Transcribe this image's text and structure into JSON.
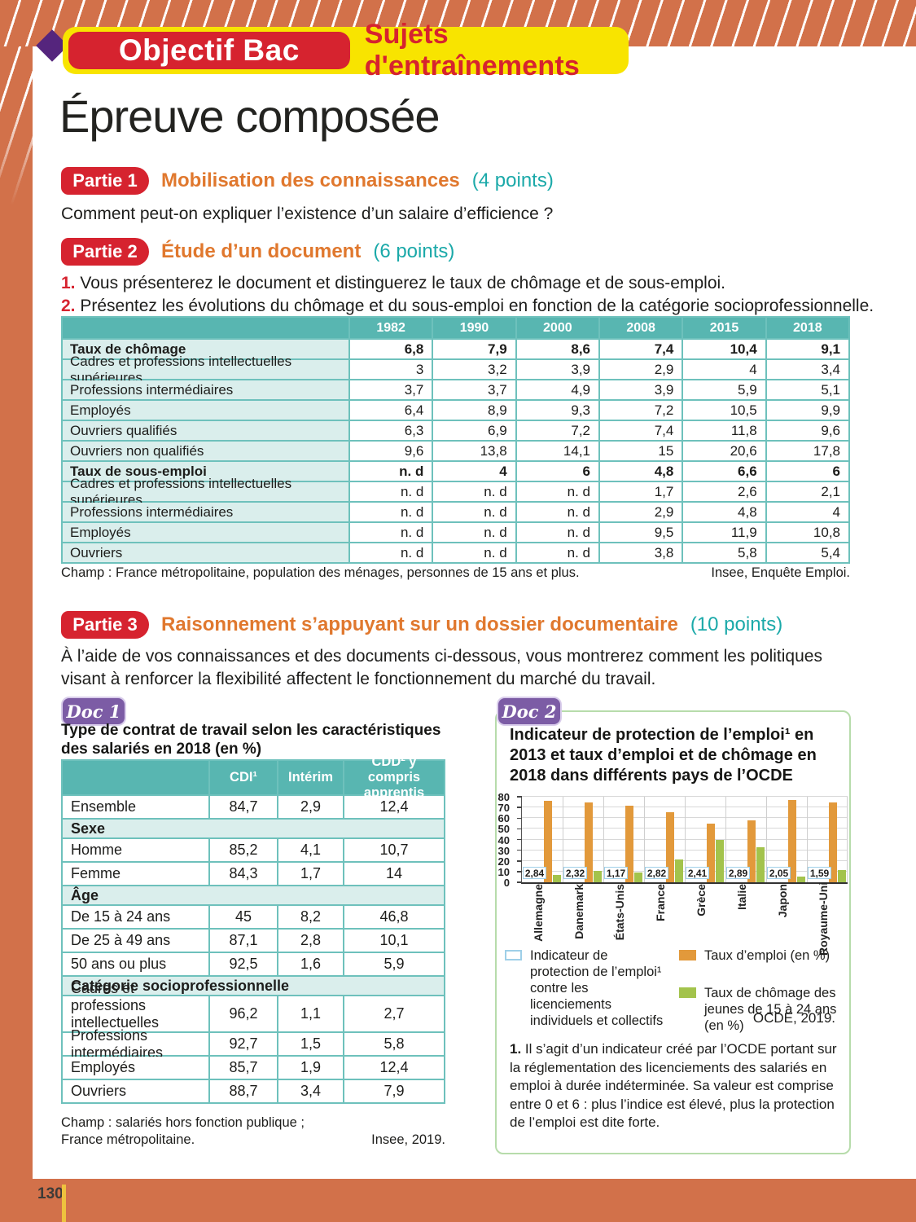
{
  "page": {
    "number": "130"
  },
  "header": {
    "badge": "Objectif Bac",
    "banner": "Sujets d'entraînements",
    "title": "Épreuve composée"
  },
  "partie1": {
    "badge": "Partie 1",
    "title": "Mobilisation des connaissances",
    "points": "(4 points)",
    "question": "Comment peut-on expliquer l’existence d’un salaire d’efficience ?"
  },
  "partie2": {
    "badge": "Partie 2",
    "title": "Étude d’un document",
    "points": "(6 points)",
    "questions": [
      {
        "num": "1.",
        "text": "Vous présenterez le document et distinguerez le taux de chômage et de sous-emploi."
      },
      {
        "num": "2.",
        "text": "Présentez les évolutions du chômage et du sous-emploi en fonction de la catégorie socioprofessionnelle."
      }
    ],
    "table": {
      "col_headers": [
        "1982",
        "1990",
        "2000",
        "2008",
        "2015",
        "2018"
      ],
      "rows": [
        {
          "label": "Taux de chômage",
          "bold": true,
          "values": [
            "6,8",
            "7,9",
            "8,6",
            "7,4",
            "10,4",
            "9,1"
          ]
        },
        {
          "label": "Cadres et professions intellectuelles supérieures",
          "bold": false,
          "values": [
            "3",
            "3,2",
            "3,9",
            "2,9",
            "4",
            "3,4"
          ]
        },
        {
          "label": "Professions intermédiaires",
          "bold": false,
          "values": [
            "3,7",
            "3,7",
            "4,9",
            "3,9",
            "5,9",
            "5,1"
          ]
        },
        {
          "label": "Employés",
          "bold": false,
          "values": [
            "6,4",
            "8,9",
            "9,3",
            "7,2",
            "10,5",
            "9,9"
          ]
        },
        {
          "label": "Ouvriers qualifiés",
          "bold": false,
          "values": [
            "6,3",
            "6,9",
            "7,2",
            "7,4",
            "11,8",
            "9,6"
          ]
        },
        {
          "label": "Ouvriers non qualifiés",
          "bold": false,
          "values": [
            "9,6",
            "13,8",
            "14,1",
            "15",
            "20,6",
            "17,8"
          ]
        },
        {
          "label": "Taux de sous-emploi",
          "bold": true,
          "values": [
            "n. d",
            "4",
            "6",
            "4,8",
            "6,6",
            "6"
          ]
        },
        {
          "label": "Cadres et professions intellectuelles supérieures",
          "bold": false,
          "values": [
            "n. d",
            "n. d",
            "n. d",
            "1,7",
            "2,6",
            "2,1"
          ]
        },
        {
          "label": "Professions intermédiaires",
          "bold": false,
          "values": [
            "n. d",
            "n. d",
            "n. d",
            "2,9",
            "4,8",
            "4"
          ]
        },
        {
          "label": "Employés",
          "bold": false,
          "values": [
            "n. d",
            "n. d",
            "n. d",
            "9,5",
            "11,9",
            "10,8"
          ]
        },
        {
          "label": "Ouvriers",
          "bold": false,
          "values": [
            "n. d",
            "n. d",
            "n. d",
            "3,8",
            "5,8",
            "5,4"
          ]
        }
      ],
      "champ": "Champ : France métropolitaine, population des ménages, personnes de 15 ans et plus.",
      "source": "Insee, Enquête Emploi."
    }
  },
  "partie3": {
    "badge": "Partie 3",
    "title": "Raisonnement s’appuyant sur un dossier documentaire",
    "points": "(10 points)",
    "intro": "À l’aide de vos connaissances et des documents ci-dessous, vous montrerez comment les politiques visant à renforcer la flexibilité affectent le fonctionnement du marché du travail."
  },
  "doc1": {
    "badge": "Doc 1",
    "title": "Type de contrat de travail selon les caractéristiques des salariés en 2018 (en %)",
    "table": {
      "col_headers": [
        "",
        "CDI¹",
        "Intérim",
        "CDD² y compris apprentis"
      ],
      "rows": [
        {
          "type": "data",
          "label": "Ensemble",
          "values": [
            "84,7",
            "2,9",
            "12,4"
          ]
        },
        {
          "type": "section",
          "label": "Sexe"
        },
        {
          "type": "data",
          "label": "Homme",
          "values": [
            "85,2",
            "4,1",
            "10,7"
          ]
        },
        {
          "type": "data",
          "label": "Femme",
          "values": [
            "84,3",
            "1,7",
            "14"
          ]
        },
        {
          "type": "section",
          "label": "Âge"
        },
        {
          "type": "data",
          "label": "De 15 à 24 ans",
          "values": [
            "45",
            "8,2",
            "46,8"
          ]
        },
        {
          "type": "data",
          "label": "De 25 à 49 ans",
          "values": [
            "87,1",
            "2,8",
            "10,1"
          ]
        },
        {
          "type": "data",
          "label": "50 ans ou plus",
          "values": [
            "92,5",
            "1,6",
            "5,9"
          ]
        },
        {
          "type": "section",
          "label": "Catégorie socioprofessionnelle"
        },
        {
          "type": "data",
          "label": "Cadres et professions intellectuelles supérieures",
          "values": [
            "96,2",
            "1,1",
            "2,7"
          ]
        },
        {
          "type": "data",
          "label": "Professions intermédiaires",
          "values": [
            "92,7",
            "1,5",
            "5,8"
          ]
        },
        {
          "type": "data",
          "label": "Employés",
          "values": [
            "85,7",
            "1,9",
            "12,4"
          ]
        },
        {
          "type": "data",
          "label": "Ouvriers",
          "values": [
            "88,7",
            "3,4",
            "7,9"
          ]
        }
      ],
      "champ_line1": "Champ : salariés hors fonction publique ;",
      "champ_line2": "France métropolitaine.",
      "source": "Insee, 2019."
    }
  },
  "doc2": {
    "badge": "Doc 2",
    "title": "Indicateur de protection de l’emploi¹ en 2013 et taux d’emploi et de chômage en 2018 dans différents pays de l’OCDE",
    "legend": [
      {
        "swatch": "indicator",
        "text": "Indicateur de protection de l’emploi¹ contre les licenciements individuels et collectifs"
      },
      {
        "swatch": "emploi",
        "text": "Taux d’emploi (en %)"
      },
      {
        "swatch": "chomage",
        "text": "Taux de chômage des jeunes de 15 à 24 ans (en %)"
      }
    ],
    "source": "OCDE, 2019.",
    "footnote_num": "1.",
    "footnote": " Il s’agit d’un indicateur créé par l’OCDE portant sur la réglementation des licenciements des salariés en emploi à durée indéterminée. Sa valeur est comprise entre 0 et 6 : plus l’indice est élevé, plus la protection de l’emploi est dite forte."
  },
  "chart_data": {
    "type": "bar",
    "categories": [
      "Allemagne",
      "Danemark",
      "États-Unis",
      "France",
      "Grèce",
      "Italie",
      "Japon",
      "Royaume-Uni"
    ],
    "series": [
      {
        "name": "Indicateur de protection de l'emploi contre les licenciements individuels et collectifs (2013)",
        "values": [
          2.84,
          2.32,
          1.17,
          2.82,
          2.41,
          2.89,
          2.05,
          1.59
        ],
        "labels": [
          "2,84",
          "2,32",
          "1,17",
          "2,82",
          "2,41",
          "2,89",
          "2,05",
          "1,59"
        ],
        "display": "boxed-value"
      },
      {
        "name": "Taux d'emploi (en %)",
        "values": [
          76,
          74.5,
          71.5,
          65.5,
          55,
          58,
          77,
          74.5
        ],
        "color": "#e2993b"
      },
      {
        "name": "Taux de chômage des jeunes de 15 à 24 ans (en %)",
        "values": [
          6.5,
          11,
          9,
          21,
          40,
          32.5,
          5,
          11.5
        ],
        "color": "#a3c34c"
      }
    ],
    "title": "Indicateur de protection de l'emploi en 2013 et taux d'emploi et de chômage en 2018 dans différents pays de l'OCDE",
    "xlabel": "",
    "ylabel": "",
    "ylim": [
      0,
      80
    ],
    "yticks": [
      0,
      10,
      20,
      30,
      40,
      50,
      60,
      70,
      80
    ],
    "grid": "horizontal-light",
    "legend_position": "below"
  },
  "colors": {
    "frame_orange": "#d2714a",
    "badge_red": "#d6232f",
    "banner_yellow": "#f8e400",
    "heading_orange": "#e0782e",
    "points_teal": "#1ba9a9",
    "table_header_teal": "#58b6b1",
    "table_cell_teal": "#daeeec",
    "table_border_teal": "#6ec1bc",
    "doc_badge_purple": "#7c5ca5",
    "doc2_border_green": "#b7dcab",
    "bar_orange": "#e2993b",
    "bar_green": "#a3c34c",
    "indicator_box_border": "#9fcfe8",
    "page_tick_yellow": "#eec23e"
  }
}
